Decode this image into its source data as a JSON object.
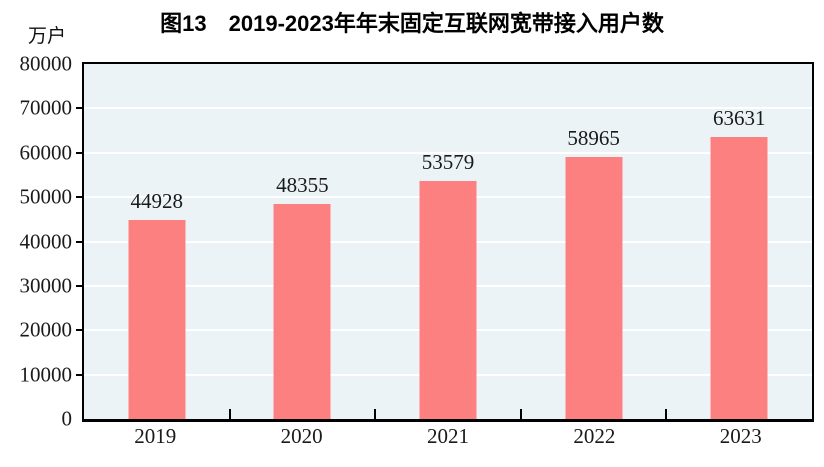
{
  "chart_data": {
    "type": "bar",
    "title": "图13　2019-2023年年末固定互联网宽带接入用户数",
    "unit_label": "万户",
    "categories": [
      "2019",
      "2020",
      "2021",
      "2022",
      "2023"
    ],
    "values": [
      44928,
      48355,
      53579,
      58965,
      63631
    ],
    "value_labels": [
      "44928",
      "48355",
      "53579",
      "58965",
      "63631"
    ],
    "ylim": [
      0,
      80000
    ],
    "ytick_step": 10000,
    "ytick_labels": [
      "0",
      "10000",
      "20000",
      "30000",
      "40000",
      "50000",
      "60000",
      "70000",
      "80000"
    ],
    "grid": true,
    "legend": "none",
    "colors": {
      "bar": "#fc8080",
      "plot_background": "#ebf3f7",
      "gridline": "#ffffff",
      "axis": "#000000",
      "text": "#1a1a1a"
    }
  }
}
